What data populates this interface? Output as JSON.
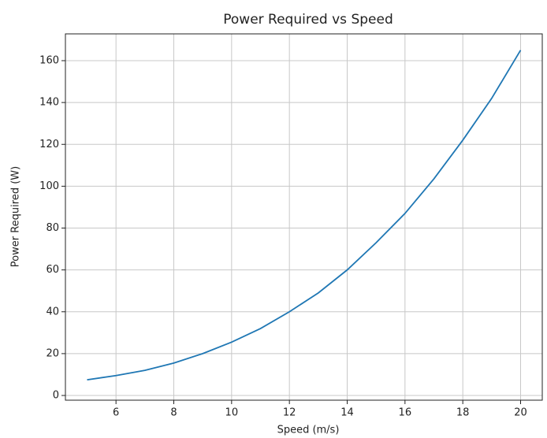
{
  "chart_data": {
    "type": "line",
    "title": "Power Required vs Speed",
    "xlabel": "Speed (m/s)",
    "ylabel": "Power Required (W)",
    "x": [
      5,
      6,
      7,
      8,
      9,
      10,
      11,
      12,
      13,
      14,
      15,
      16,
      17,
      18,
      19,
      20
    ],
    "series": [
      {
        "name": "Power Required",
        "color": "#1f77b4",
        "values": [
          7.5,
          9.5,
          12,
          15.5,
          20,
          25.5,
          32,
          40,
          49,
          60,
          73,
          87,
          103.5,
          122,
          142,
          165
        ]
      }
    ],
    "xlim": [
      4.25,
      20.75
    ],
    "ylim": [
      -2.25,
      172.8
    ],
    "xticks": [
      6,
      8,
      10,
      12,
      14,
      16,
      18,
      20
    ],
    "yticks": [
      0,
      20,
      40,
      60,
      80,
      100,
      120,
      140,
      160
    ],
    "grid": true
  }
}
